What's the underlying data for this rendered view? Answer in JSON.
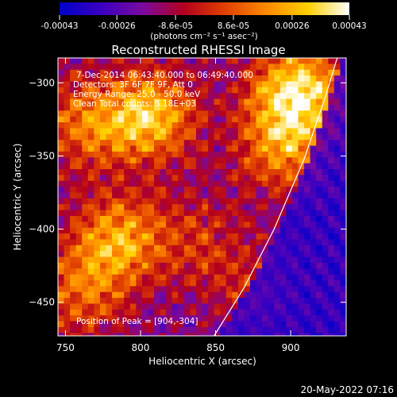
{
  "chart_data": {
    "type": "heatmap",
    "title": "Reconstructed RHESSI Image",
    "xlabel": "Heliocentric X (arcsec)",
    "ylabel": "Heliocentric Y (arcsec)",
    "xlim": [
      745,
      937
    ],
    "ylim": [
      -473,
      -283
    ],
    "x_ticks": [
      750,
      800,
      850,
      900
    ],
    "y_ticks": [
      -300,
      -350,
      -400,
      -450
    ],
    "colorbar": {
      "range": [
        -0.00043,
        0.00043
      ],
      "ticks": [
        {
          "value": -0.00043,
          "label": "-0.00043"
        },
        {
          "value": -0.00026,
          "label": "-0.00026"
        },
        {
          "value": -8.6e-05,
          "label": "-8.6e-05"
        },
        {
          "value": 8.6e-05,
          "label": "8.6e-05"
        },
        {
          "value": 0.00026,
          "label": "0.00026"
        },
        {
          "value": 0.00043,
          "label": "0.00043"
        }
      ],
      "unit_label": "(photons cm⁻² s⁻¹ asec⁻²)",
      "stops": [
        "#0000c8",
        "#3a00c0",
        "#7a0aa0",
        "#b4001e",
        "#e04000",
        "#ff8a00",
        "#ffd000",
        "#ffffff"
      ]
    },
    "annotations": {
      "time_range": "7-Dec-2014 06:43:40.000 to 06:49:40.000",
      "detectors": "Detectors: 3F 6F 7F 9F, Att 0",
      "energy": "Energy Range: 25.0 - 50.0 keV",
      "clean": "Clean    Total counts: 5.18E+03",
      "peak": "Position of Peak = [904,-304]"
    },
    "peak_position": [
      904,
      -304
    ],
    "limb_line": [
      [
        849,
        -473
      ],
      [
        869,
        -440
      ],
      [
        889,
        -400
      ],
      [
        909,
        -352
      ],
      [
        923,
        -310
      ],
      [
        931,
        -283
      ]
    ],
    "hot_regions": [
      {
        "x": 805,
        "y": -323,
        "amp": 1.0
      },
      {
        "x": 905,
        "y": -306,
        "amp": 1.15
      },
      {
        "x": 895,
        "y": -345,
        "amp": 0.7
      },
      {
        "x": 760,
        "y": -328,
        "amp": 0.6
      },
      {
        "x": 785,
        "y": -408,
        "amp": 0.85
      },
      {
        "x": 760,
        "y": -445,
        "amp": 0.55
      },
      {
        "x": 838,
        "y": -405,
        "amp": 0.35
      },
      {
        "x": 870,
        "y": -440,
        "amp": 0.3
      }
    ]
  },
  "timestamp": "20-May-2022 07:16"
}
